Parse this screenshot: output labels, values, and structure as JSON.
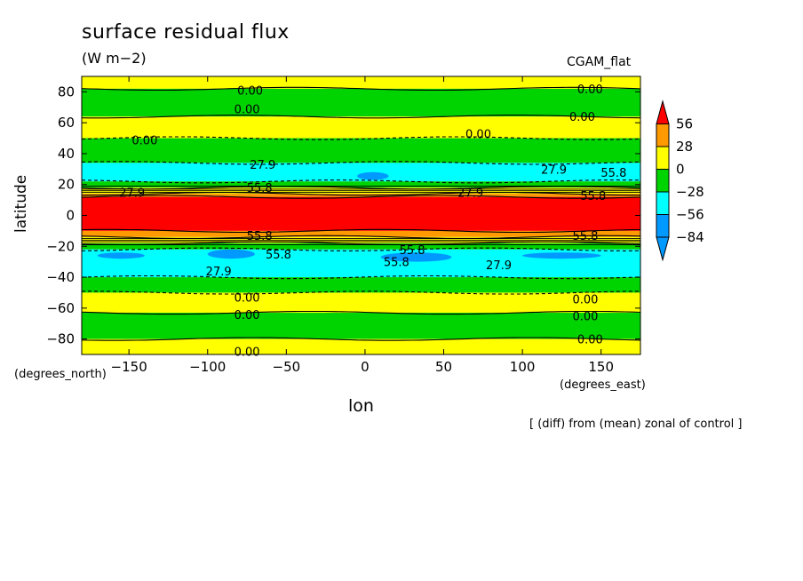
{
  "header": {
    "title": "surface residual flux",
    "units": "(W m−2)",
    "run_name": "CGAM_flat"
  },
  "axes": {
    "xlabel": "lon",
    "ylabel": "latitude",
    "x_units": "(degrees_east)",
    "y_units": "(degrees_north)"
  },
  "footer": {
    "note": "[ (diff) from (mean) zonal of control ]"
  },
  "chart_data": {
    "type": "heatmap",
    "title": "surface residual flux",
    "xlabel": "lon",
    "ylabel": "latitude",
    "xlim": [
      -180,
      175
    ],
    "ylim": [
      -90,
      90
    ],
    "x_ticks": [
      -150,
      -100,
      -50,
      0,
      50,
      100,
      150
    ],
    "x_tick_labels": [
      "−150",
      "−100",
      "−50",
      "0",
      "50",
      "100",
      "150"
    ],
    "y_ticks": [
      80,
      60,
      40,
      20,
      0,
      -20,
      -40,
      -60,
      -80
    ],
    "y_tick_labels": [
      "80",
      "60",
      "40",
      "20",
      "0",
      "−20",
      "−40",
      "−60",
      "−80"
    ],
    "colorbar": {
      "levels": [
        56,
        28,
        0,
        -28,
        -56,
        -84
      ],
      "level_labels": [
        "56",
        "28",
        "0",
        "−28",
        "−56",
        "−84"
      ],
      "colors": [
        "#ff0000",
        "#ff9900",
        "#ffff00",
        "#00d400",
        "#00ffff",
        "#0099ff",
        "#0000ff"
      ],
      "extend": "both"
    },
    "zonal_bands": [
      {
        "lat_from": 90,
        "lat_to": 82,
        "value_color": "#ffff00"
      },
      {
        "lat_from": 82,
        "lat_to": 64,
        "value_color": "#00d400"
      },
      {
        "lat_from": 64,
        "lat_to": 50,
        "value_color": "#ffff00"
      },
      {
        "lat_from": 50,
        "lat_to": 34,
        "value_color": "#00d400"
      },
      {
        "lat_from": 34,
        "lat_to": 22,
        "value_color": "#00ffff"
      },
      {
        "lat_from": 22,
        "lat_to": 18,
        "value_color": "#00d400"
      },
      {
        "lat_from": 18,
        "lat_to": 14,
        "value_color": "#ffff00"
      },
      {
        "lat_from": 14,
        "lat_to": 12,
        "value_color": "#ff9900"
      },
      {
        "lat_from": 12,
        "lat_to": -10,
        "value_color": "#ff0000"
      },
      {
        "lat_from": -10,
        "lat_to": -14,
        "value_color": "#ff9900"
      },
      {
        "lat_from": -14,
        "lat_to": -18,
        "value_color": "#ffff00"
      },
      {
        "lat_from": -18,
        "lat_to": -22,
        "value_color": "#00d400"
      },
      {
        "lat_from": -22,
        "lat_to": -40,
        "value_color": "#00ffff"
      },
      {
        "lat_from": -40,
        "lat_to": -50,
        "value_color": "#00d400"
      },
      {
        "lat_from": -50,
        "lat_to": -63,
        "value_color": "#ffff00"
      },
      {
        "lat_from": -63,
        "lat_to": -80,
        "value_color": "#00d400"
      },
      {
        "lat_from": -80,
        "lat_to": -90,
        "value_color": "#ffff00"
      }
    ],
    "blue_patches": [
      {
        "lon_from": -5,
        "lon_to": 15,
        "lat_from": 28,
        "lat_to": 23
      },
      {
        "lon_from": -100,
        "lon_to": -70,
        "lat_from": -22,
        "lat_to": -28
      },
      {
        "lon_from": -170,
        "lon_to": -140,
        "lat_from": -24,
        "lat_to": -28
      },
      {
        "lon_from": 10,
        "lon_to": 55,
        "lat_from": -24,
        "lat_to": -30
      },
      {
        "lon_from": 100,
        "lon_to": 150,
        "lat_from": -24,
        "lat_to": -28
      }
    ],
    "contour_labels": [
      {
        "lon": -73,
        "lat": 81,
        "text": "0.00"
      },
      {
        "lon": -75,
        "lat": 69,
        "text": "0.00"
      },
      {
        "lon": -140,
        "lat": 49,
        "text": "0.00"
      },
      {
        "lon": 72,
        "lat": 53,
        "text": "0.00"
      },
      {
        "lon": 143,
        "lat": 82,
        "text": "0.00"
      },
      {
        "lon": 138,
        "lat": 64,
        "text": "0.00"
      },
      {
        "lon": -65,
        "lat": 33,
        "text": "27.9"
      },
      {
        "lon": 120,
        "lat": 30,
        "text": "27.9"
      },
      {
        "lon": -148,
        "lat": 15,
        "text": "27.9"
      },
      {
        "lon": 67,
        "lat": 15,
        "text": "27.9"
      },
      {
        "lon": -67,
        "lat": 18,
        "text": "55.8"
      },
      {
        "lon": 158,
        "lat": 28,
        "text": "55.8"
      },
      {
        "lon": 145,
        "lat": 13,
        "text": "55.8"
      },
      {
        "lon": -67,
        "lat": -13,
        "text": "55.8"
      },
      {
        "lon": 30,
        "lat": -22,
        "text": "55.8"
      },
      {
        "lon": 20,
        "lat": -30,
        "text": "55.8"
      },
      {
        "lon": -55,
        "lat": -25,
        "text": "55.8"
      },
      {
        "lon": 140,
        "lat": -13,
        "text": "55.8"
      },
      {
        "lon": -93,
        "lat": -36,
        "text": "27.9"
      },
      {
        "lon": 85,
        "lat": -32,
        "text": "27.9"
      },
      {
        "lon": -75,
        "lat": -53,
        "text": "0.00"
      },
      {
        "lon": -75,
        "lat": -64,
        "text": "0.00"
      },
      {
        "lon": -75,
        "lat": -88,
        "text": "0.00"
      },
      {
        "lon": 140,
        "lat": -65,
        "text": "0.00"
      },
      {
        "lon": 140,
        "lat": -54,
        "text": "0.00"
      },
      {
        "lon": 143,
        "lat": -80,
        "text": "0.00"
      }
    ]
  }
}
